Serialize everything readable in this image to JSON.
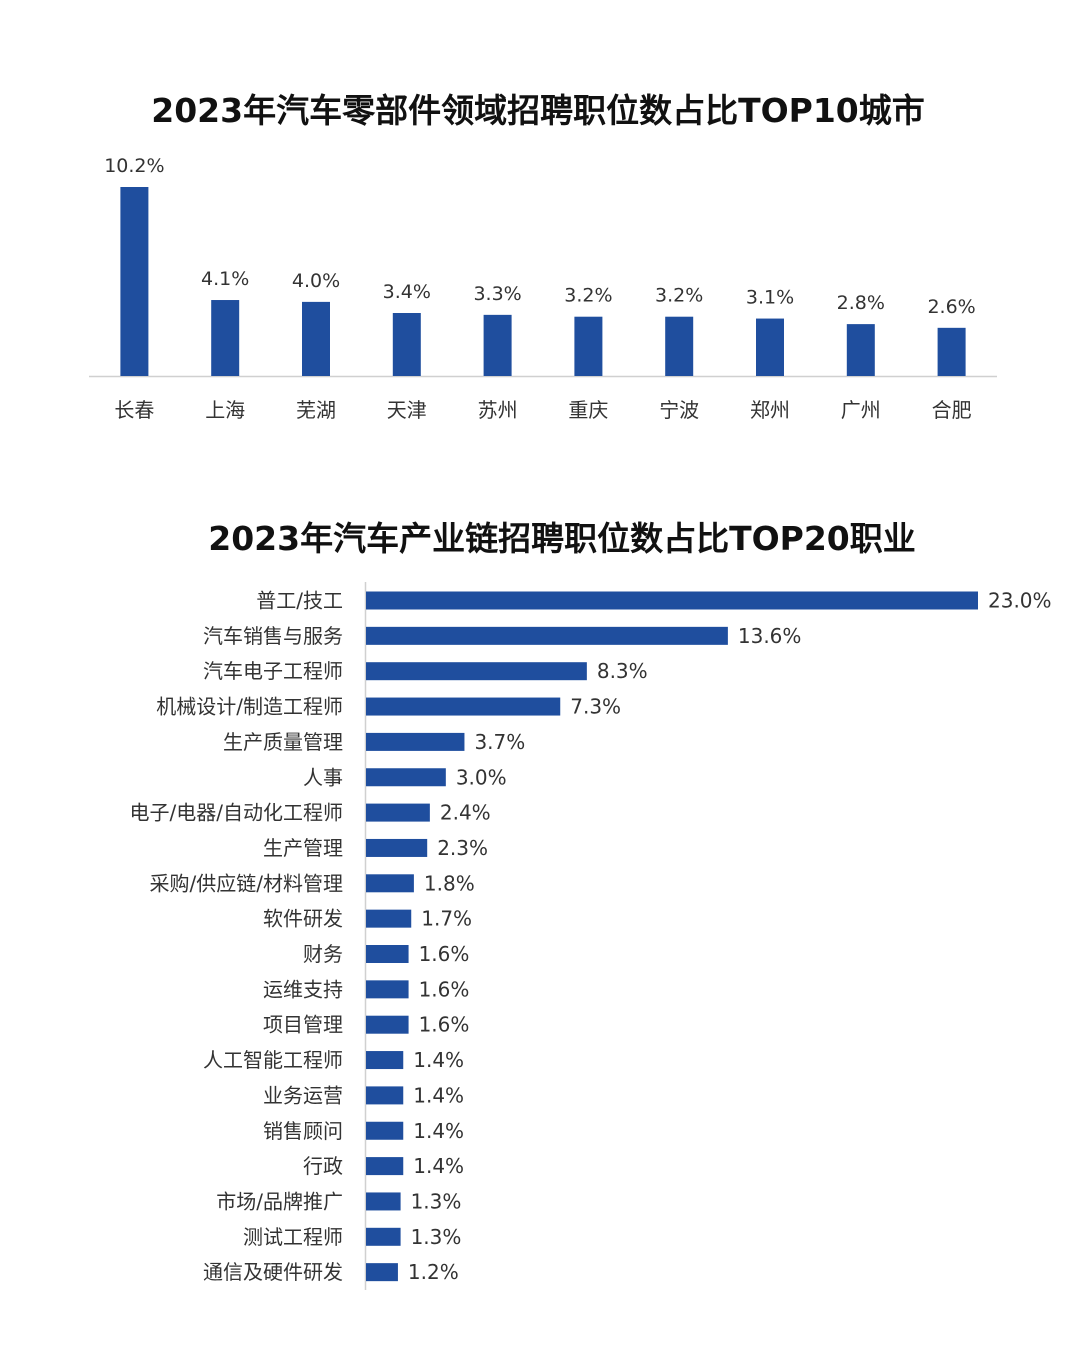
{
  "chart_data": [
    {
      "type": "bar",
      "orientation": "vertical",
      "title": "2023年汽车零部件领域招聘职位数占比TOP10城市",
      "xlabel": "",
      "ylabel": "",
      "categories": [
        "长春",
        "上海",
        "芜湖",
        "天津",
        "苏州",
        "重庆",
        "宁波",
        "郑州",
        "广州",
        "合肥"
      ],
      "values": [
        10.2,
        4.1,
        4.0,
        3.4,
        3.3,
        3.2,
        3.2,
        3.1,
        2.8,
        2.6
      ],
      "value_labels": [
        "10.2%",
        "4.1%",
        "4.0%",
        "3.4%",
        "3.3%",
        "3.2%",
        "3.2%",
        "3.1%",
        "2.8%",
        "2.6%"
      ],
      "unit": "%",
      "grid": false,
      "bar_color": "#1f4e9e"
    },
    {
      "type": "bar",
      "orientation": "horizontal",
      "title": "2023年汽车产业链招聘职位数占比TOP20职业",
      "xlabel": "",
      "ylabel": "",
      "categories": [
        "普工/技工",
        "汽车销售与服务",
        "汽车电子工程师",
        "机械设计/制造工程师",
        "生产质量管理",
        "人事",
        "电子/电器/自动化工程师",
        "生产管理",
        "采购/供应链/材料管理",
        "软件研发",
        "财务",
        "运维支持",
        "项目管理",
        "人工智能工程师",
        "业务运营",
        "销售顾问",
        "行政",
        "市场/品牌推广",
        "测试工程师",
        "通信及硬件研发"
      ],
      "values": [
        23.0,
        13.6,
        8.3,
        7.3,
        3.7,
        3.0,
        2.4,
        2.3,
        1.8,
        1.7,
        1.6,
        1.6,
        1.6,
        1.4,
        1.4,
        1.4,
        1.4,
        1.3,
        1.3,
        1.2
      ],
      "value_labels": [
        "23.0%",
        "13.6%",
        "8.3%",
        "7.3%",
        "3.7%",
        "3.0%",
        "2.4%",
        "2.3%",
        "1.8%",
        "1.7%",
        "1.6%",
        "1.6%",
        "1.6%",
        "1.4%",
        "1.4%",
        "1.4%",
        "1.4%",
        "1.3%",
        "1.3%",
        "1.2%"
      ],
      "unit": "%",
      "grid": false,
      "bar_color": "#1f4e9e"
    }
  ]
}
